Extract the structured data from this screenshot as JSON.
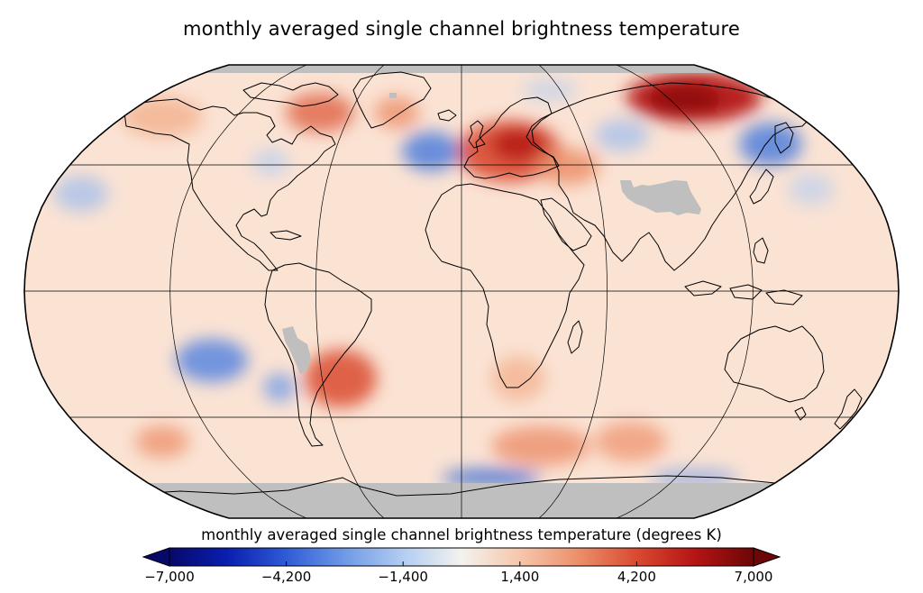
{
  "title": "monthly averaged single channel brightness temperature",
  "projection": "Robinson",
  "colorbar": {
    "label": "monthly averaged single channel brightness temperature (degrees K)",
    "min": -7000,
    "max": 7000,
    "ticks": [
      -7000,
      -4200,
      -1400,
      1400,
      4200,
      7000
    ],
    "tick_labels": [
      "−7,000",
      "−4,200",
      "−1,400",
      "1,400",
      "4,200",
      "7,000"
    ],
    "extend": "both",
    "colormap": [
      "#08086b",
      "#0a1fb0",
      "#2f5bd6",
      "#6f9ae6",
      "#b3cdf2",
      "#f4f2ee",
      "#f6c7ac",
      "#ec8f6a",
      "#d94a30",
      "#b51414",
      "#6d0606"
    ]
  },
  "colors": {
    "no_data": "#bfbfbf",
    "background_warm": "#fbe3d4",
    "coastline": "#000000"
  },
  "features": [
    {
      "name": "eastern Europe / western Russia",
      "anomaly": "strong warm"
    },
    {
      "name": "northern Siberia",
      "anomaly": "strong warm"
    },
    {
      "name": "southern South America",
      "anomaly": "warm"
    },
    {
      "name": "North Atlantic",
      "anomaly": "cool"
    },
    {
      "name": "Kamchatka / far east Siberia",
      "anomaly": "cool"
    },
    {
      "name": "South Pacific",
      "anomaly": "cool"
    },
    {
      "name": "Southern Ocean south of Africa",
      "anomaly": "cool"
    },
    {
      "name": "Tibetan Plateau",
      "anomaly": "no data"
    },
    {
      "name": "Andes",
      "anomaly": "no data"
    },
    {
      "name": "Antarctica / polar caps",
      "anomaly": "no data"
    }
  ]
}
